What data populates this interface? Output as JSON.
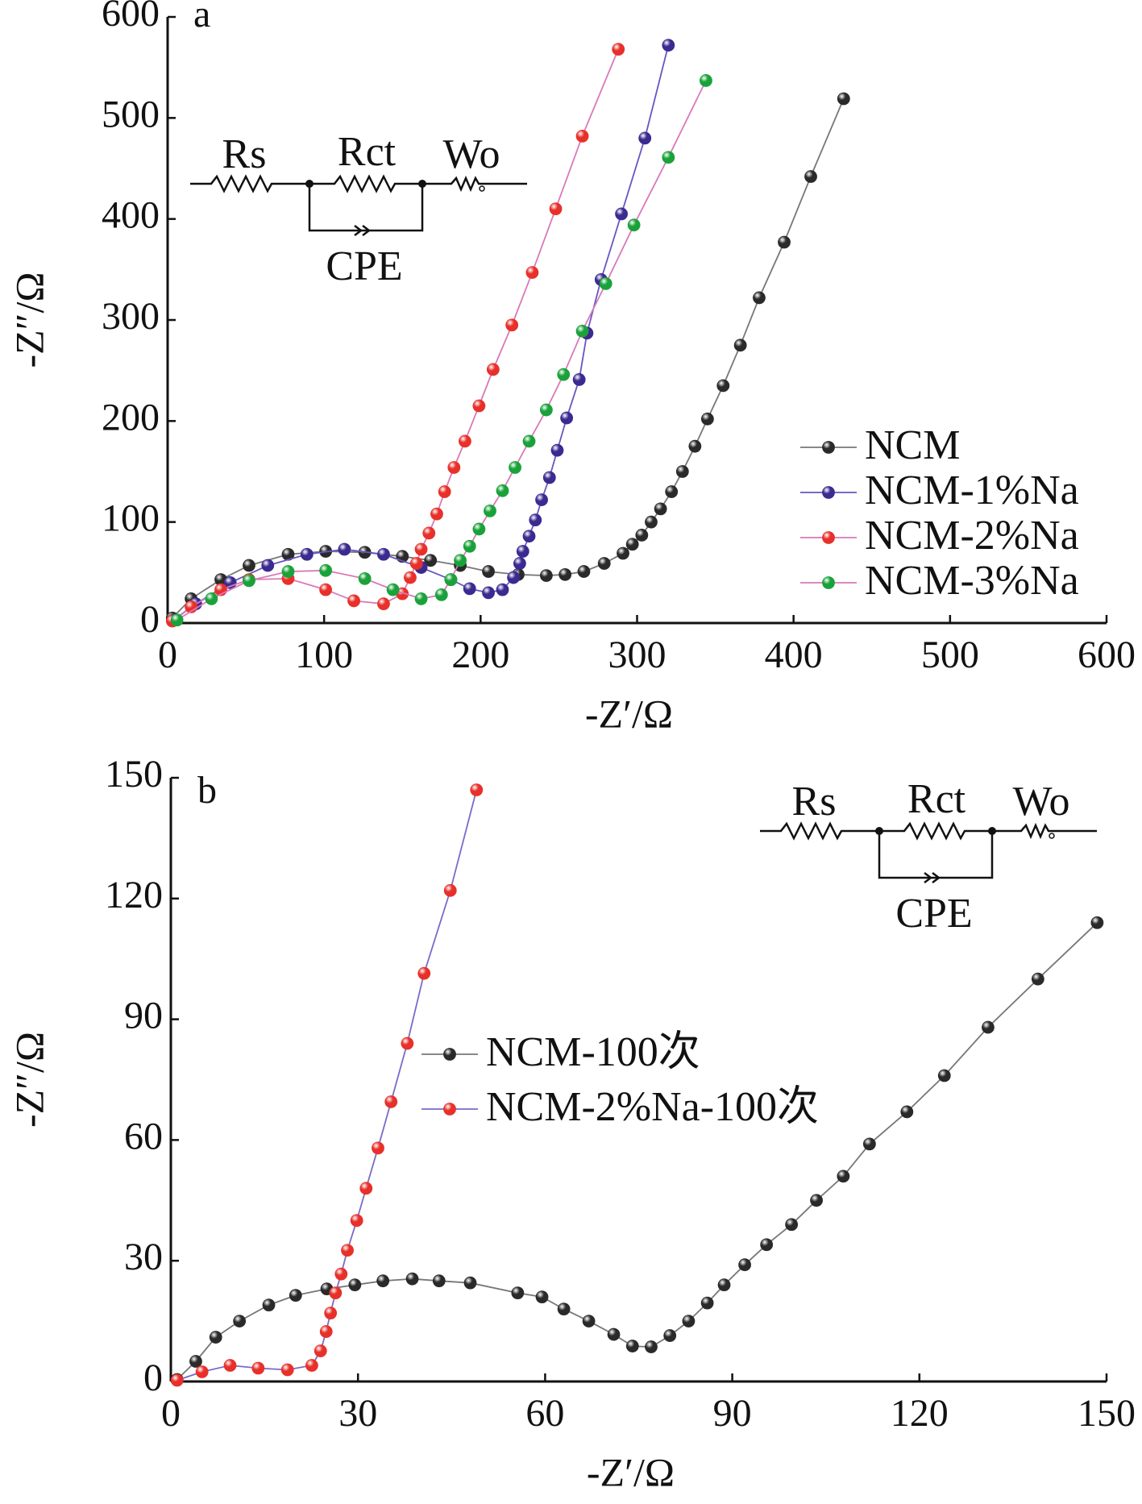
{
  "chart_data": [
    {
      "type": "line",
      "panel_label": "a",
      "xlabel": "-Z′/Ω",
      "ylabel": "-Z″/Ω",
      "xlim": [
        0,
        600
      ],
      "ylim": [
        0,
        600
      ],
      "xticks": [
        0,
        100,
        200,
        300,
        400,
        500,
        600
      ],
      "yticks": [
        0,
        100,
        200,
        300,
        400,
        500,
        600
      ],
      "annotations": [
        "Rs",
        "Rct",
        "Wo",
        "CPE"
      ],
      "legend": "right",
      "series": [
        {
          "name": "NCM",
          "color": "#2a2a2a",
          "line_color": "#777777",
          "x": [
            3,
            15,
            34,
            52,
            77,
            101,
            126,
            150,
            168,
            187,
            205,
            224,
            242,
            254,
            266,
            279,
            291,
            297,
            303,
            309,
            315,
            322,
            329,
            337,
            345,
            355,
            366,
            378,
            394,
            411,
            432
          ],
          "y": [
            5,
            24,
            43,
            57,
            68,
            71,
            70,
            66,
            62,
            57,
            51,
            48,
            47,
            48,
            51,
            59,
            69,
            78,
            87,
            100,
            113,
            130,
            150,
            175,
            202,
            235,
            275,
            322,
            377,
            442,
            519
          ]
        },
        {
          "name": "NCM-1%Na",
          "color": "#3b2a90",
          "line_color": "#6a55c0",
          "x": [
            4,
            18,
            40,
            64,
            89,
            113,
            138,
            162,
            181,
            193,
            205,
            214,
            221,
            225,
            227,
            231,
            235,
            239,
            244,
            249,
            255,
            263,
            268,
            277,
            290,
            305,
            320
          ],
          "y": [
            3,
            19,
            40,
            57,
            68,
            73,
            68,
            55,
            43,
            34,
            30,
            33,
            45,
            59,
            71,
            86,
            102,
            122,
            144,
            171,
            203,
            241,
            287,
            340,
            405,
            480,
            572
          ]
        },
        {
          "name": "NCM-2%Na",
          "color": "#e8302a",
          "line_color": "#d87ab8",
          "x": [
            3,
            15,
            34,
            52,
            77,
            101,
            119,
            138,
            150,
            155,
            159,
            162,
            167,
            172,
            177,
            183,
            190,
            199,
            208,
            220,
            233,
            248,
            265,
            288
          ],
          "y": [
            2,
            16,
            33,
            43,
            44,
            33,
            22,
            19,
            29,
            45,
            59,
            73,
            89,
            108,
            130,
            154,
            180,
            215,
            251,
            295,
            347,
            410,
            482,
            568
          ]
        },
        {
          "name": "NCM-3%Na",
          "color": "#1aa23a",
          "line_color": "#d87ab8",
          "x": [
            6,
            28,
            52,
            77,
            101,
            126,
            144,
            162,
            175,
            181,
            187,
            193,
            199,
            206,
            214,
            222,
            231,
            242,
            253,
            265,
            280,
            298,
            320,
            344
          ],
          "y": [
            3,
            24,
            42,
            51,
            52,
            44,
            33,
            24,
            28,
            43,
            62,
            76,
            93,
            111,
            131,
            154,
            180,
            211,
            246,
            289,
            336,
            394,
            461,
            537
          ]
        }
      ]
    },
    {
      "type": "line",
      "panel_label": "b",
      "xlabel": "-Z′/Ω",
      "ylabel": "-Z″/Ω",
      "xlim": [
        0,
        150
      ],
      "ylim": [
        0,
        150
      ],
      "xticks": [
        0,
        30,
        60,
        90,
        120,
        150
      ],
      "yticks": [
        0,
        30,
        60,
        90,
        120,
        150
      ],
      "annotations": [
        "Rs",
        "Rct",
        "Wo",
        "CPE"
      ],
      "legend": "center",
      "series": [
        {
          "name": "NCM-100次",
          "color": "#2a2a2a",
          "line_color": "#777777",
          "x": [
            1,
            4,
            7.2,
            11,
            15.7,
            20,
            25,
            29.5,
            34,
            38.7,
            43,
            48,
            55.6,
            59.5,
            63,
            67,
            71,
            74,
            77,
            80,
            83,
            86,
            88.7,
            92,
            95.5,
            99.5,
            103.5,
            107.8,
            112,
            118,
            124,
            131,
            139,
            148.5
          ],
          "y": [
            0.5,
            5,
            11,
            15,
            19,
            21.4,
            23,
            24,
            25,
            25.5,
            25,
            24.5,
            22,
            21,
            18,
            15,
            11.7,
            8.8,
            8.6,
            11.4,
            15,
            19.5,
            24,
            29,
            34,
            39,
            45,
            51,
            59,
            67,
            76,
            88,
            100,
            114
          ]
        },
        {
          "name": "NCM-2%Na-100次",
          "color": "#e8302a",
          "line_color": "#7a6ac8",
          "x": [
            1,
            5,
            9.5,
            14,
            18.7,
            22.6,
            24,
            24.9,
            25.6,
            26.4,
            27.3,
            28.3,
            29.8,
            31.3,
            33.2,
            35.3,
            37.9,
            40.6,
            44.8,
            49
          ],
          "y": [
            0.3,
            2.4,
            4,
            3.3,
            2.9,
            4,
            7.6,
            12.4,
            17,
            22,
            26.7,
            32.6,
            40,
            48,
            58,
            69.5,
            84,
            101.4,
            122,
            147
          ]
        }
      ]
    }
  ]
}
